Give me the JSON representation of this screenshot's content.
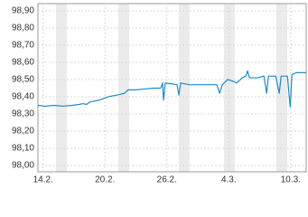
{
  "chart_data": {
    "type": "line",
    "x": [
      -0.5,
      0.18,
      1.05,
      1.93,
      2.81,
      3.51,
      3.86,
      4.21,
      4.56,
      5.44,
      6.32,
      7.19,
      7.89,
      8.25,
      8.95,
      9.82,
      10.7,
      11.4,
      11.58,
      11.67,
      11.84,
      12.46,
      12.98,
      13.16,
      13.33,
      14.21,
      15.09,
      15.96,
      16.84,
      17.11,
      17.37,
      17.89,
      18.42,
      18.77,
      19.3,
      19.65,
      19.82,
      20,
      20.79,
      21.4,
      21.67,
      21.84,
      22.54,
      22.89,
      23.07,
      23.68,
      23.95,
      24.12,
      24.56,
      25.5
    ],
    "series": [
      {
        "color": "#1b8ccc",
        "values": [
          98.35,
          98.345,
          98.35,
          98.345,
          98.35,
          98.355,
          98.36,
          98.355,
          98.37,
          98.38,
          98.4,
          98.41,
          98.42,
          98.44,
          98.44,
          98.445,
          98.45,
          98.45,
          98.48,
          98.38,
          98.48,
          98.475,
          98.47,
          98.41,
          98.48,
          98.47,
          98.47,
          98.47,
          98.47,
          98.42,
          98.47,
          98.5,
          98.49,
          98.48,
          98.51,
          98.52,
          98.55,
          98.51,
          98.51,
          98.52,
          98.42,
          98.52,
          98.52,
          98.42,
          98.52,
          98.52,
          98.34,
          98.53,
          98.54,
          98.54
        ]
      }
    ],
    "xlim": [
      -0.5,
      25.5
    ],
    "xticks": [
      {
        "value": 0,
        "label": "14.2."
      },
      {
        "value": 6,
        "label": "20.2."
      },
      {
        "value": 12,
        "label": "26.2."
      },
      {
        "value": 18,
        "label": "4.3."
      },
      {
        "value": 24,
        "label": "10.3."
      }
    ],
    "ylim": [
      97.963,
      98.942
    ],
    "yticks": [
      {
        "value": 98.0,
        "label": "98,00"
      },
      {
        "value": 98.1,
        "label": "98,10"
      },
      {
        "value": 98.2,
        "label": "98,20"
      },
      {
        "value": 98.3,
        "label": "98,30"
      },
      {
        "value": 98.4,
        "label": "98,40"
      },
      {
        "value": 98.5,
        "label": "98,50"
      },
      {
        "value": 98.6,
        "label": "98,60"
      },
      {
        "value": 98.7,
        "label": "98,70"
      },
      {
        "value": 98.8,
        "label": "98,80"
      },
      {
        "value": 98.9,
        "label": "98,90"
      }
    ],
    "grid": true
  }
}
